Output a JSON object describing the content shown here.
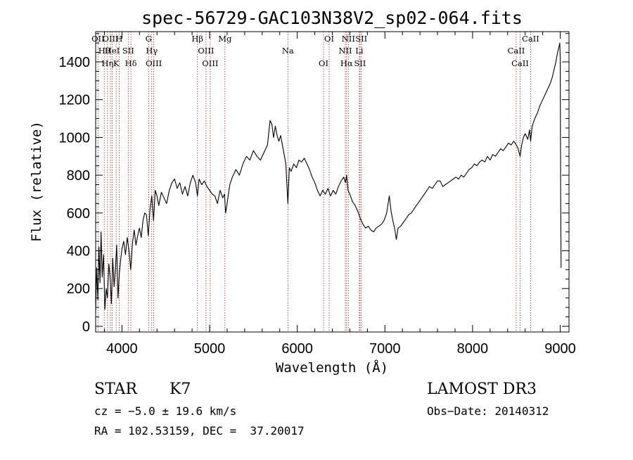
{
  "chart_data": {
    "type": "line",
    "title": "spec-56729-GAC103N38V2_sp02-064.fits",
    "xlabel": "Wavelength (Å)",
    "ylabel": "Flux (relative)",
    "xlim": [
      3700,
      9100
    ],
    "ylim": [
      -30,
      1560
    ],
    "x_ticks": [
      4000,
      5000,
      6000,
      7000,
      8000,
      9000
    ],
    "y_ticks": [
      0,
      200,
      400,
      600,
      800,
      1000,
      1200,
      1400
    ],
    "grid": false,
    "series": [
      {
        "name": "spectrum",
        "points": [
          [
            3700,
            80
          ],
          [
            3712,
            310
          ],
          [
            3725,
            140
          ],
          [
            3738,
            420
          ],
          [
            3750,
            230
          ],
          [
            3762,
            500
          ],
          [
            3775,
            260
          ],
          [
            3790,
            380
          ],
          [
            3805,
            90
          ],
          [
            3820,
            200
          ],
          [
            3835,
            150
          ],
          [
            3850,
            330
          ],
          [
            3865,
            260
          ],
          [
            3880,
            120
          ],
          [
            3895,
            360
          ],
          [
            3910,
            210
          ],
          [
            3925,
            300
          ],
          [
            3940,
            430
          ],
          [
            3955,
            150
          ],
          [
            3970,
            280
          ],
          [
            3985,
            350
          ],
          [
            4000,
            410
          ],
          [
            4020,
            450
          ],
          [
            4040,
            380
          ],
          [
            4060,
            470
          ],
          [
            4080,
            400
          ],
          [
            4100,
            300
          ],
          [
            4120,
            440
          ],
          [
            4140,
            510
          ],
          [
            4160,
            430
          ],
          [
            4180,
            480
          ],
          [
            4200,
            520
          ],
          [
            4220,
            470
          ],
          [
            4240,
            560
          ],
          [
            4260,
            600
          ],
          [
            4280,
            590
          ],
          [
            4300,
            480
          ],
          [
            4320,
            620
          ],
          [
            4340,
            690
          ],
          [
            4360,
            560
          ],
          [
            4380,
            720
          ],
          [
            4400,
            690
          ],
          [
            4420,
            640
          ],
          [
            4450,
            710
          ],
          [
            4480,
            680
          ],
          [
            4510,
            650
          ],
          [
            4540,
            720
          ],
          [
            4570,
            760
          ],
          [
            4600,
            780
          ],
          [
            4630,
            730
          ],
          [
            4660,
            760
          ],
          [
            4690,
            700
          ],
          [
            4720,
            740
          ],
          [
            4750,
            690
          ],
          [
            4780,
            760
          ],
          [
            4810,
            800
          ],
          [
            4840,
            760
          ],
          [
            4861,
            690
          ],
          [
            4880,
            780
          ],
          [
            4910,
            750
          ],
          [
            4940,
            770
          ],
          [
            4970,
            740
          ],
          [
            5000,
            720
          ],
          [
            5030,
            700
          ],
          [
            5060,
            690
          ],
          [
            5090,
            650
          ],
          [
            5120,
            720
          ],
          [
            5150,
            680
          ],
          [
            5170,
            700
          ],
          [
            5183,
            600
          ],
          [
            5200,
            650
          ],
          [
            5230,
            750
          ],
          [
            5260,
            790
          ],
          [
            5300,
            830
          ],
          [
            5340,
            800
          ],
          [
            5380,
            860
          ],
          [
            5420,
            900
          ],
          [
            5460,
            880
          ],
          [
            5500,
            930
          ],
          [
            5540,
            900
          ],
          [
            5580,
            880
          ],
          [
            5620,
            920
          ],
          [
            5660,
            960
          ],
          [
            5690,
            1090
          ],
          [
            5710,
            1070
          ],
          [
            5730,
            1000
          ],
          [
            5750,
            1060
          ],
          [
            5770,
            1010
          ],
          [
            5790,
            980
          ],
          [
            5810,
            1010
          ],
          [
            5830,
            960
          ],
          [
            5850,
            910
          ],
          [
            5870,
            860
          ],
          [
            5893,
            650
          ],
          [
            5910,
            840
          ],
          [
            5930,
            820
          ],
          [
            5960,
            860
          ],
          [
            5990,
            840
          ],
          [
            6020,
            880
          ],
          [
            6050,
            870
          ],
          [
            6080,
            890
          ],
          [
            6110,
            860
          ],
          [
            6140,
            830
          ],
          [
            6170,
            790
          ],
          [
            6200,
            760
          ],
          [
            6230,
            720
          ],
          [
            6260,
            690
          ],
          [
            6290,
            720
          ],
          [
            6320,
            700
          ],
          [
            6350,
            730
          ],
          [
            6380,
            690
          ],
          [
            6410,
            720
          ],
          [
            6440,
            700
          ],
          [
            6470,
            740
          ],
          [
            6500,
            770
          ],
          [
            6530,
            790
          ],
          [
            6550,
            760
          ],
          [
            6563,
            800
          ],
          [
            6580,
            720
          ],
          [
            6600,
            700
          ],
          [
            6630,
            660
          ],
          [
            6660,
            640
          ],
          [
            6690,
            610
          ],
          [
            6720,
            570
          ],
          [
            6750,
            540
          ],
          [
            6780,
            520
          ],
          [
            6810,
            530
          ],
          [
            6840,
            510
          ],
          [
            6870,
            500
          ],
          [
            6900,
            520
          ],
          [
            6930,
            530
          ],
          [
            6960,
            540
          ],
          [
            6990,
            560
          ],
          [
            7020,
            600
          ],
          [
            7050,
            690
          ],
          [
            7070,
            610
          ],
          [
            7090,
            560
          ],
          [
            7110,
            520
          ],
          [
            7130,
            460
          ],
          [
            7150,
            520
          ],
          [
            7180,
            530
          ],
          [
            7210,
            550
          ],
          [
            7240,
            570
          ],
          [
            7270,
            590
          ],
          [
            7300,
            600
          ],
          [
            7330,
            620
          ],
          [
            7360,
            640
          ],
          [
            7390,
            660
          ],
          [
            7420,
            680
          ],
          [
            7450,
            700
          ],
          [
            7480,
            720
          ],
          [
            7510,
            740
          ],
          [
            7540,
            730
          ],
          [
            7570,
            750
          ],
          [
            7600,
            770
          ],
          [
            7630,
            770
          ],
          [
            7660,
            740
          ],
          [
            7690,
            750
          ],
          [
            7720,
            760
          ],
          [
            7750,
            770
          ],
          [
            7780,
            780
          ],
          [
            7810,
            790
          ],
          [
            7840,
            780
          ],
          [
            7870,
            800
          ],
          [
            7900,
            790
          ],
          [
            7930,
            810
          ],
          [
            7960,
            830
          ],
          [
            7990,
            840
          ],
          [
            8020,
            860
          ],
          [
            8050,
            850
          ],
          [
            8080,
            870
          ],
          [
            8110,
            880
          ],
          [
            8140,
            870
          ],
          [
            8170,
            900
          ],
          [
            8200,
            880
          ],
          [
            8230,
            910
          ],
          [
            8260,
            900
          ],
          [
            8290,
            920
          ],
          [
            8320,
            940
          ],
          [
            8350,
            930
          ],
          [
            8380,
            950
          ],
          [
            8410,
            970
          ],
          [
            8440,
            960
          ],
          [
            8470,
            980
          ],
          [
            8500,
            960
          ],
          [
            8520,
            940
          ],
          [
            8542,
            900
          ],
          [
            8560,
            960
          ],
          [
            8580,
            1000
          ],
          [
            8600,
            1020
          ],
          [
            8630,
            990
          ],
          [
            8650,
            1040
          ],
          [
            8662,
            980
          ],
          [
            8680,
            1060
          ],
          [
            8710,
            1100
          ],
          [
            8740,
            1130
          ],
          [
            8770,
            1170
          ],
          [
            8800,
            1200
          ],
          [
            8830,
            1230
          ],
          [
            8860,
            1260
          ],
          [
            8890,
            1290
          ],
          [
            8910,
            1320
          ],
          [
            8930,
            1360
          ],
          [
            8950,
            1400
          ],
          [
            8970,
            1450
          ],
          [
            8985,
            1480
          ],
          [
            8995,
            1500
          ],
          [
            9000,
            1420
          ],
          [
            9005,
            650
          ],
          [
            9010,
            310
          ]
        ]
      }
    ],
    "lines": [
      {
        "name": "OII",
        "wave": 3727
      },
      {
        "name": "Hθ",
        "wave": 3798
      },
      {
        "name": "Hη",
        "wave": 3835
      },
      {
        "name": "OIII",
        "wave": 3869
      },
      {
        "name": "HeI",
        "wave": 3889
      },
      {
        "name": "K",
        "wave": 3934
      },
      {
        "name": "H",
        "wave": 3968
      },
      {
        "name": "SII",
        "wave": 4072
      },
      {
        "name": "Hδ",
        "wave": 4102
      },
      {
        "name": "G",
        "wave": 4305
      },
      {
        "name": "Hγ",
        "wave": 4340
      },
      {
        "name": "OIII",
        "wave": 4363
      },
      {
        "name": "Hβ",
        "wave": 4861
      },
      {
        "name": "OIII",
        "wave": 4959
      },
      {
        "name": "OIII",
        "wave": 5007
      },
      {
        "name": "Mg",
        "wave": 5175
      },
      {
        "name": "Na",
        "wave": 5893
      },
      {
        "name": "OI",
        "wave": 6300
      },
      {
        "name": "OI",
        "wave": 6364
      },
      {
        "name": "NII",
        "wave": 6548
      },
      {
        "name": "Hα",
        "wave": 6563
      },
      {
        "name": "NII",
        "wave": 6583
      },
      {
        "name": "Li",
        "wave": 6708
      },
      {
        "name": "SII",
        "wave": 6716
      },
      {
        "name": "SII",
        "wave": 6731
      },
      {
        "name": "CaII",
        "wave": 8498
      },
      {
        "name": "CaII",
        "wave": 8542
      },
      {
        "name": "CaII",
        "wave": 8662
      }
    ]
  },
  "footer": {
    "object_class": "STAR",
    "subclass": "K7",
    "survey": "LAMOST DR3",
    "redshift": "cz = −5.0 ± 19.6 km/s",
    "obs_date": "Obs−Date: 20140312",
    "coords": "RA = 102.53159, DEC =  37.20017"
  },
  "colors": {
    "spectrum": "#000000",
    "line_marker": "#b22222",
    "axis": "#000000"
  }
}
